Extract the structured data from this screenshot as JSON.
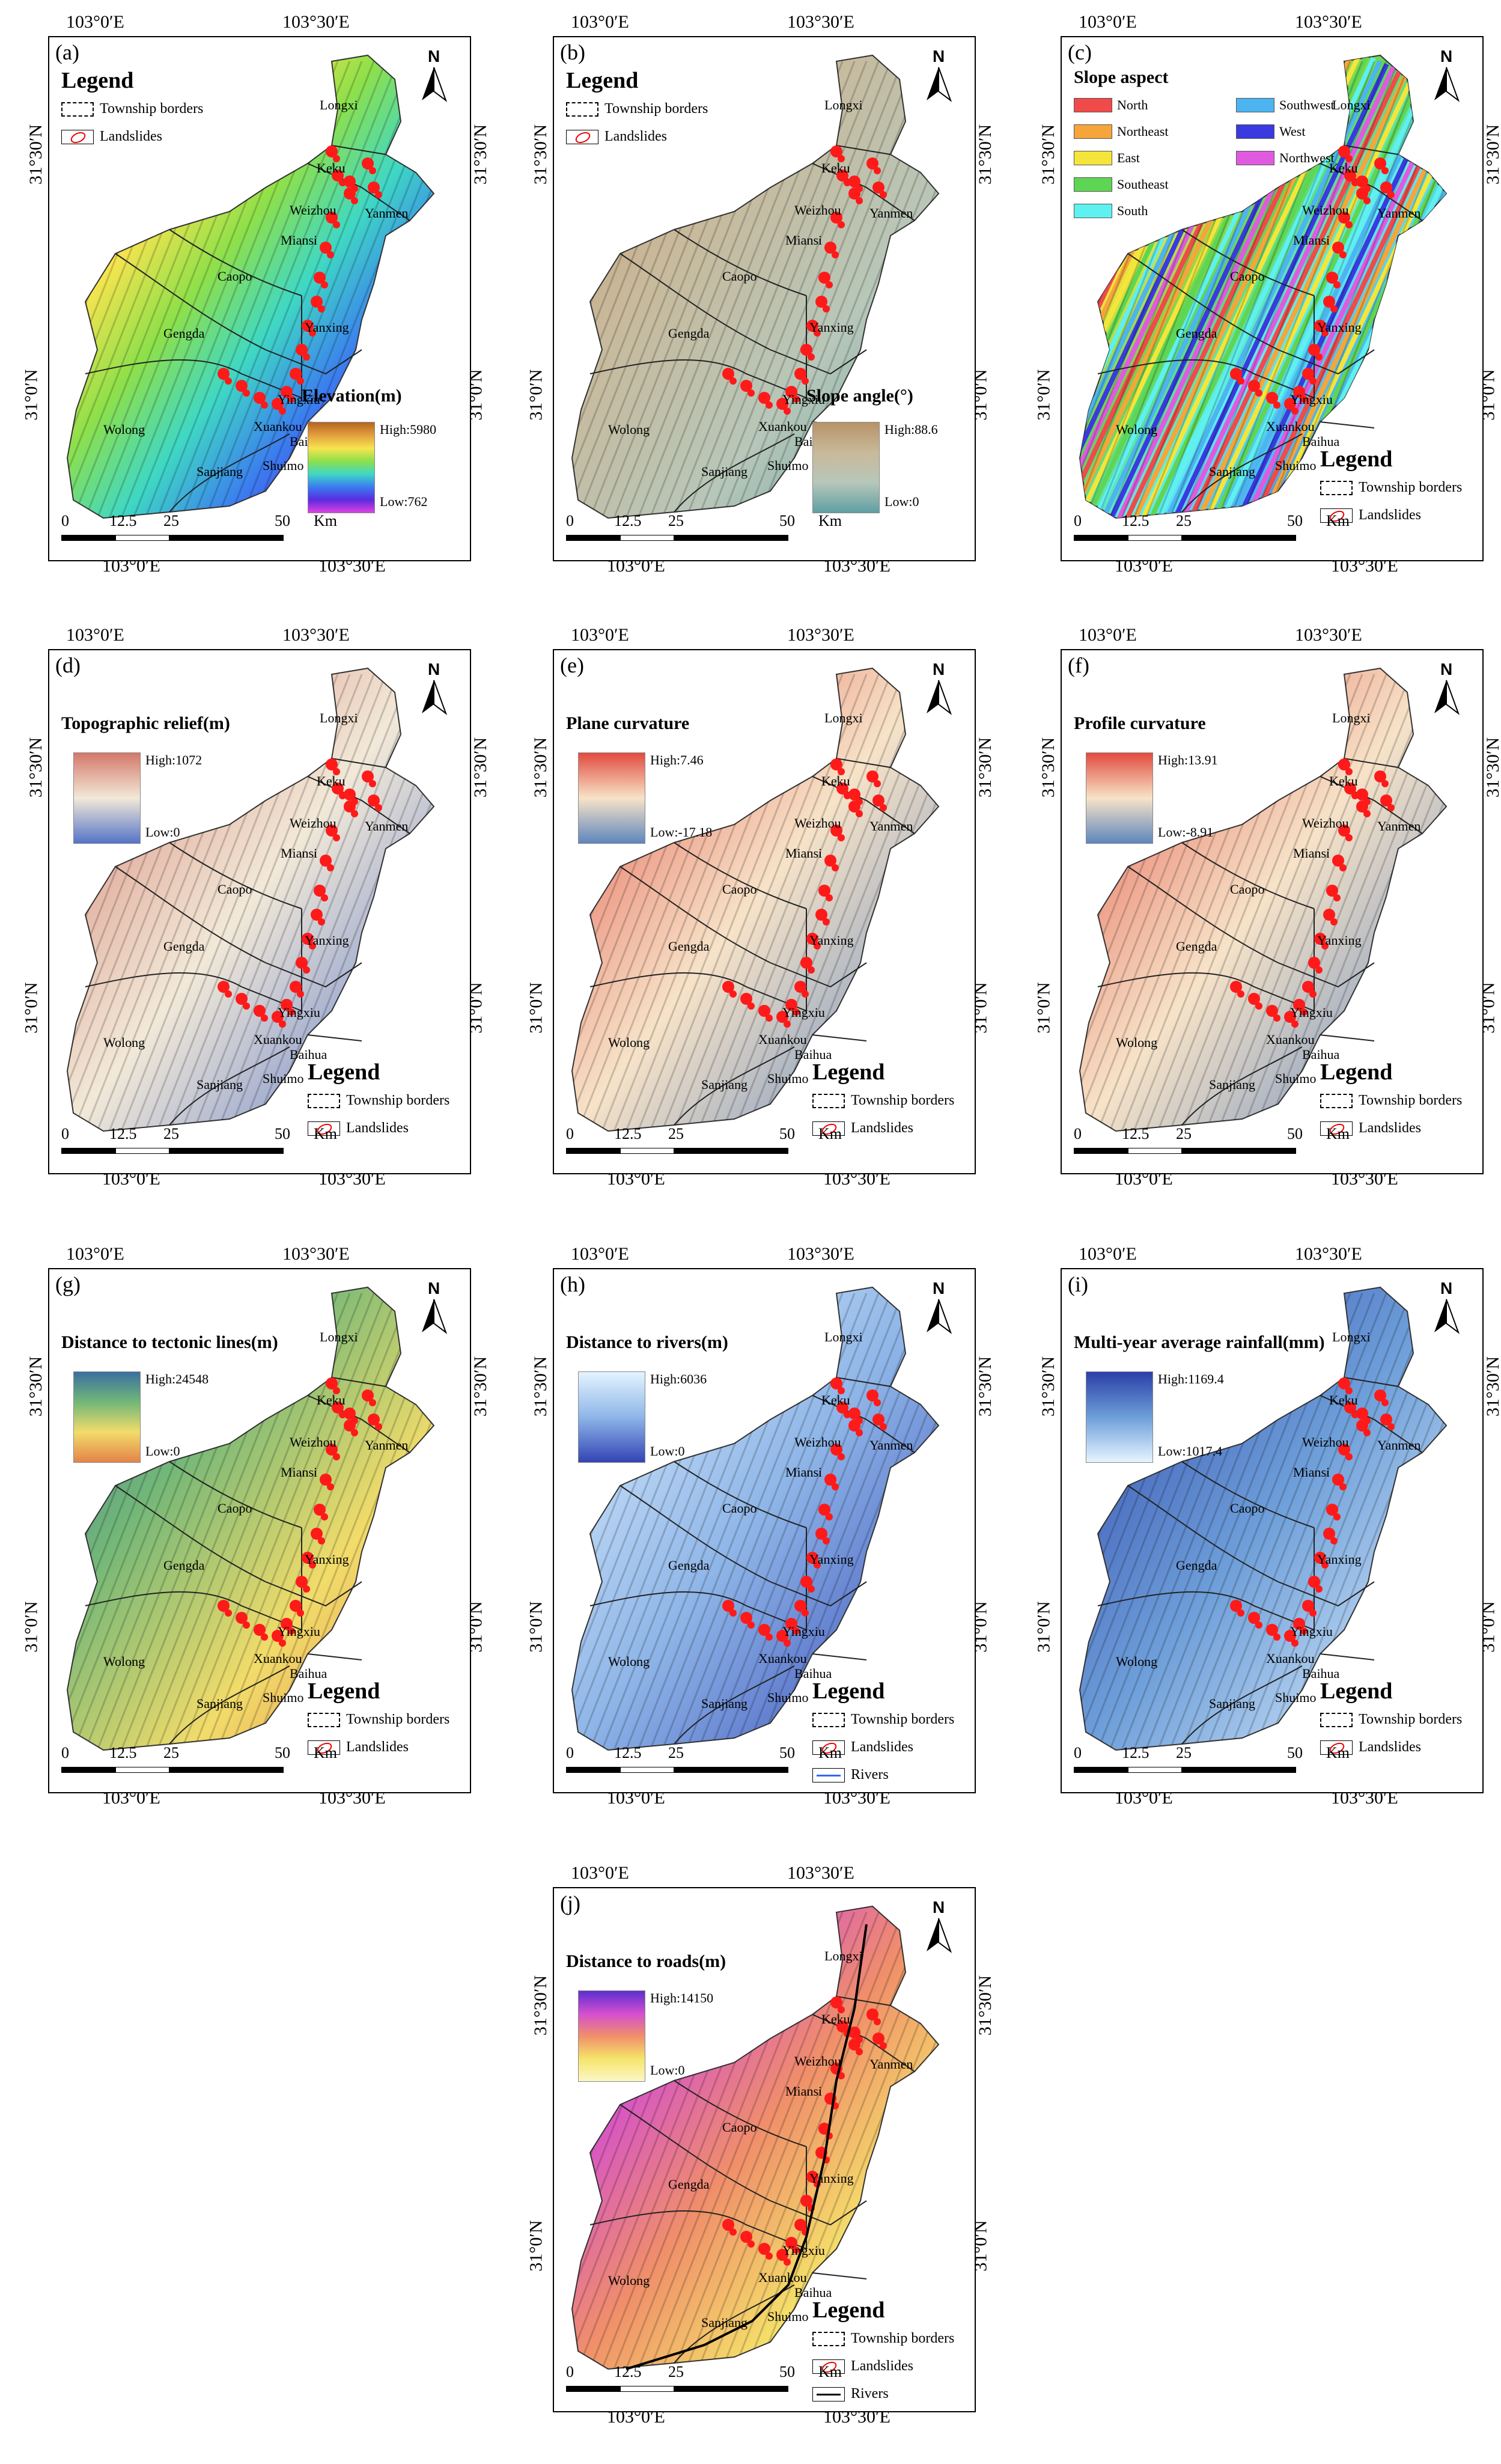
{
  "coords": {
    "lon_left": "103°0′E",
    "lon_right": "103°30′E",
    "lat_top": "31°30′N",
    "lat_bottom": "31°0′N"
  },
  "legend": {
    "title": "Legend",
    "township": "Township borders",
    "landslides": "Landslides",
    "rivers": "Rivers",
    "north": "N"
  },
  "scale": {
    "t0": "0",
    "t1": "12.5",
    "t2": "25",
    "t3": "50",
    "unit": "Km"
  },
  "towns": [
    "Longxi",
    "Keku",
    "Weizhou",
    "Yanmen",
    "Miansi",
    "Caopo",
    "Yanxing",
    "Gengda",
    "Yingxiu",
    "Xuankou",
    "Baihua",
    "Shuimo",
    "Sanjiang",
    "Wolong"
  ],
  "panels": [
    {
      "label": "(a)",
      "ramp_title": "Elevation(m)",
      "high": "High:5980",
      "low": "Low:762",
      "colors": [
        "#b5651d",
        "#e3a03f",
        "#f7e44f",
        "#8ee04a",
        "#3fd8c4",
        "#3b7cf0",
        "#5a2be0",
        "#e040e0"
      ]
    },
    {
      "label": "(b)",
      "ramp_title": "Slope angle(°)",
      "high": "High:88.6",
      "low": "Low:0",
      "colors": [
        "#b79369",
        "#c9b99a",
        "#b7c7b9",
        "#5f9fa3"
      ]
    },
    {
      "label": "(c)",
      "ramp_title": "Slope aspect",
      "high": "",
      "low": "",
      "colors": []
    },
    {
      "label": "(d)",
      "ramp_title": "Topographic relief(m)",
      "high": "High:1072",
      "low": "Low:0",
      "colors": [
        "#d4786a",
        "#f2e9d8",
        "#5574c8"
      ]
    },
    {
      "label": "(e)",
      "ramp_title": "Plane curvature",
      "high": "High:7.46",
      "low": "Low:-17.18",
      "colors": [
        "#e24b3e",
        "#f7e3c8",
        "#5f86bd"
      ]
    },
    {
      "label": "(f)",
      "ramp_title": "Profile curvature",
      "high": "High:13.91",
      "low": "Low:-8.91",
      "colors": [
        "#e24b3e",
        "#f7e3c8",
        "#5f86bd"
      ]
    },
    {
      "label": "(g)",
      "ramp_title": "Distance to tectonic lines(m)",
      "high": "High:24548",
      "low": "Low:0",
      "colors": [
        "#3a6fa0",
        "#72b778",
        "#f2dc6a",
        "#e3834a"
      ]
    },
    {
      "label": "(h)",
      "ramp_title": "Distance to rivers(m)",
      "high": "High:6036",
      "low": "Low:0",
      "colors": [
        "#e4f4ff",
        "#8fb6e8",
        "#3344b5"
      ]
    },
    {
      "label": "(i)",
      "ramp_title": "Multi-year average rainfall(mm)",
      "high": "High:1169.4",
      "low": "Low:1017.4",
      "colors": [
        "#2b3fa8",
        "#6d9ed9",
        "#e6f5ff"
      ]
    },
    {
      "label": "(j)",
      "ramp_title": "Distance to roads(m)",
      "high": "High:14150",
      "low": "Low:0",
      "colors": [
        "#5b2fd0",
        "#d44ed0",
        "#f08f6a",
        "#f5e46a",
        "#fbf7c8"
      ]
    }
  ],
  "aspect": [
    {
      "name": "North",
      "color": "#f04a4a"
    },
    {
      "name": "Northeast",
      "color": "#f5a53a"
    },
    {
      "name": "East",
      "color": "#f5e53a"
    },
    {
      "name": "Southeast",
      "color": "#5fd653"
    },
    {
      "name": "South",
      "color": "#5ff0f0"
    },
    {
      "name": "Southwest",
      "color": "#4cb4f0"
    },
    {
      "name": "West",
      "color": "#3a3ae0"
    },
    {
      "name": "Northwest",
      "color": "#e05ae0"
    }
  ]
}
